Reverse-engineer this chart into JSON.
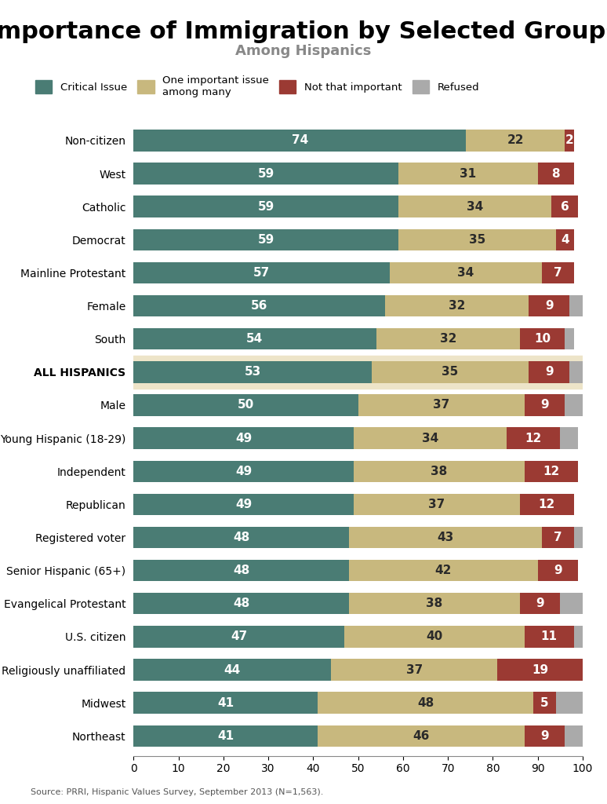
{
  "title": "Importance of Immigration by Selected Groups",
  "subtitle": "Among Hispanics",
  "source": "Source: PRRI, Hispanic Values Survey, September 2013 (N=1,563).",
  "categories": [
    "Non-citizen",
    "West",
    "Catholic",
    "Democrat",
    "Mainline Protestant",
    "Female",
    "South",
    "ALL HISPANICS",
    "Male",
    "Young Hispanic (18-29)",
    "Independent",
    "Republican",
    "Registered voter",
    "Senior Hispanic (65+)",
    "Evangelical Protestant",
    "U.S. citizen",
    "Religiously unaffiliated",
    "Midwest",
    "Northeast"
  ],
  "critical": [
    74,
    59,
    59,
    59,
    57,
    56,
    54,
    53,
    50,
    49,
    49,
    49,
    48,
    48,
    48,
    47,
    44,
    41,
    41
  ],
  "one_important": [
    22,
    31,
    34,
    35,
    34,
    32,
    32,
    35,
    37,
    34,
    38,
    37,
    43,
    42,
    38,
    40,
    37,
    48,
    46
  ],
  "not_important": [
    2,
    8,
    6,
    4,
    7,
    9,
    10,
    9,
    9,
    12,
    12,
    12,
    7,
    9,
    9,
    11,
    19,
    5,
    9
  ],
  "refused": [
    0,
    0,
    0,
    0,
    0,
    3,
    2,
    3,
    4,
    4,
    0,
    0,
    2,
    0,
    5,
    2,
    0,
    6,
    4
  ],
  "color_critical": "#4a7c74",
  "color_one_important": "#c8b87e",
  "color_not_important": "#9b3a33",
  "color_refused": "#aaaaaa",
  "color_all_hispanics_bg": "#ede4c8",
  "bar_height": 0.65,
  "xlim": [
    0,
    100
  ],
  "legend_labels": [
    "Critical Issue",
    "One important issue\namong many",
    "Not that important",
    "Refused"
  ],
  "title_fontsize": 22,
  "subtitle_fontsize": 13,
  "label_fontsize": 10,
  "bar_label_fontsize": 11
}
